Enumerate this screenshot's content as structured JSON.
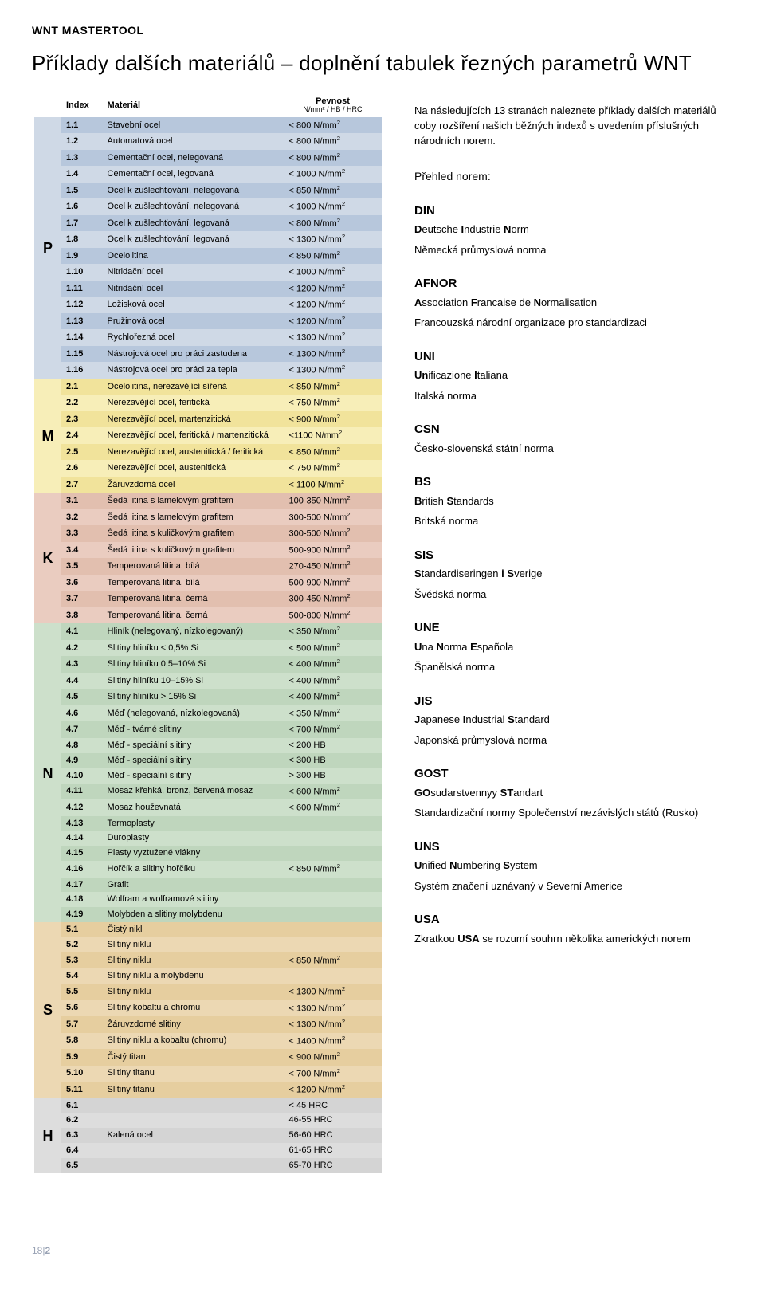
{
  "brand": {
    "heavy": "WNT",
    "light": "MASTERTOOL"
  },
  "headline": "Příklady dalších materiálů – doplnění tabulek řezných parametrů WNT",
  "table": {
    "headers": {
      "index": "Index",
      "material": "Materiál",
      "pevnost": "Pevnost",
      "pevnost_sub": "N/mm² / HB / HRC"
    },
    "groups": [
      {
        "cat": "P",
        "cat_bg": "#cfd9e6",
        "stripe_a": "#b7c7dc",
        "stripe_b": "#cfd9e6",
        "rows": [
          {
            "idx": "1.1",
            "mat": "Stavební ocel",
            "pev": "< 800 N/mm²"
          },
          {
            "idx": "1.2",
            "mat": "Automatová ocel",
            "pev": "< 800 N/mm²"
          },
          {
            "idx": "1.3",
            "mat": "Cementační ocel, nelegovaná",
            "pev": "< 800 N/mm²"
          },
          {
            "idx": "1.4",
            "mat": "Cementační ocel, legovaná",
            "pev": "< 1000 N/mm²"
          },
          {
            "idx": "1.5",
            "mat": "Ocel k zušlechťování, nelegovaná",
            "pev": "< 850 N/mm²"
          },
          {
            "idx": "1.6",
            "mat": "Ocel k zušlechťování, nelegovaná",
            "pev": "< 1000 N/mm²"
          },
          {
            "idx": "1.7",
            "mat": "Ocel k zušlechťování, legovaná",
            "pev": "< 800 N/mm²"
          },
          {
            "idx": "1.8",
            "mat": "Ocel k zušlechťování, legovaná",
            "pev": "< 1300 N/mm²"
          },
          {
            "idx": "1.9",
            "mat": "Ocelolitina",
            "pev": "< 850 N/mm²"
          },
          {
            "idx": "1.10",
            "mat": "Nitridační ocel",
            "pev": "< 1000 N/mm²"
          },
          {
            "idx": "1.11",
            "mat": "Nitridační ocel",
            "pev": "< 1200 N/mm²"
          },
          {
            "idx": "1.12",
            "mat": "Ložisková ocel",
            "pev": "< 1200 N/mm²"
          },
          {
            "idx": "1.13",
            "mat": "Pružinová ocel",
            "pev": "< 1200 N/mm²"
          },
          {
            "idx": "1.14",
            "mat": "Rychlořezná ocel",
            "pev": "< 1300 N/mm²"
          },
          {
            "idx": "1.15",
            "mat": "Nástrojová ocel pro práci zastudena",
            "pev": "< 1300 N/mm²"
          },
          {
            "idx": "1.16",
            "mat": "Nástrojová ocel pro práci za tepla",
            "pev": "< 1300 N/mm²"
          }
        ]
      },
      {
        "cat": "M",
        "cat_bg": "#f7eeb8",
        "stripe_a": "#f1e39b",
        "stripe_b": "#f7eeb8",
        "rows": [
          {
            "idx": "2.1",
            "mat": "Ocelolitina, nerezavějící sířená",
            "pev": "< 850 N/mm²"
          },
          {
            "idx": "2.2",
            "mat": "Nerezavějící ocel, feritická",
            "pev": "< 750 N/mm²"
          },
          {
            "idx": "2.3",
            "mat": "Nerezavějící ocel, martenzitická",
            "pev": "< 900 N/mm²"
          },
          {
            "idx": "2.4",
            "mat": "Nerezavějící ocel, feritická / martenzitická",
            "pev": "<1100 N/mm²"
          },
          {
            "idx": "2.5",
            "mat": "Nerezavějící ocel, austenitická / feritická",
            "pev": "< 850 N/mm²"
          },
          {
            "idx": "2.6",
            "mat": "Nerezavějící ocel, austenitická",
            "pev": "< 750 N/mm²"
          },
          {
            "idx": "2.7",
            "mat": "Žáruvzdorná ocel",
            "pev": "< 1100 N/mm²"
          }
        ]
      },
      {
        "cat": "K",
        "cat_bg": "#eaccc0",
        "stripe_a": "#e2bfaf",
        "stripe_b": "#eaccc0",
        "rows": [
          {
            "idx": "3.1",
            "mat": "Šedá litina s lamelovým grafitem",
            "pev": "100-350 N/mm²"
          },
          {
            "idx": "3.2",
            "mat": "Šedá litina s lamelovým grafitem",
            "pev": "300-500 N/mm²"
          },
          {
            "idx": "3.3",
            "mat": "Šedá litina s kuličkovým grafitem",
            "pev": "300-500 N/mm²"
          },
          {
            "idx": "3.4",
            "mat": "Šedá litina s kuličkovým grafitem",
            "pev": "500-900 N/mm²"
          },
          {
            "idx": "3.5",
            "mat": "Temperovaná litina, bílá",
            "pev": "270-450 N/mm²"
          },
          {
            "idx": "3.6",
            "mat": "Temperovaná litina, bílá",
            "pev": "500-900 N/mm²"
          },
          {
            "idx": "3.7",
            "mat": "Temperovaná litina, černá",
            "pev": "300-450 N/mm²"
          },
          {
            "idx": "3.8",
            "mat": "Temperovaná litina, černá",
            "pev": "500-800 N/mm²"
          }
        ]
      },
      {
        "cat": "N",
        "cat_bg": "#cde0cb",
        "stripe_a": "#bfd6bd",
        "stripe_b": "#cde0cb",
        "rows": [
          {
            "idx": "4.1",
            "mat": "Hliník (nelegovaný, nízkolegovaný)",
            "pev": "< 350 N/mm²"
          },
          {
            "idx": "4.2",
            "mat": "Slitiny hliníku < 0,5% Si",
            "pev": "< 500 N/mm²"
          },
          {
            "idx": "4.3",
            "mat": "Slitiny hliníku 0,5–10% Si",
            "pev": "< 400 N/mm²"
          },
          {
            "idx": "4.4",
            "mat": "Slitiny hliníku 10–15% Si",
            "pev": "< 400 N/mm²"
          },
          {
            "idx": "4.5",
            "mat": "Slitiny hliníku > 15% Si",
            "pev": "< 400 N/mm²"
          },
          {
            "idx": "4.6",
            "mat": "Měď (nelegovaná, nízkolegovaná)",
            "pev": "< 350 N/mm²"
          },
          {
            "idx": "4.7",
            "mat": "Měď - tvárné slitiny",
            "pev": "< 700 N/mm²"
          },
          {
            "idx": "4.8",
            "mat": "Měď - speciální slitiny",
            "pev": "< 200 HB"
          },
          {
            "idx": "4.9",
            "mat": "Měď - speciální slitiny",
            "pev": "< 300 HB"
          },
          {
            "idx": "4.10",
            "mat": "Měď - speciální slitiny",
            "pev": "> 300 HB"
          },
          {
            "idx": "4.11",
            "mat": "Mosaz křehká, bronz, červená mosaz",
            "pev": "< 600 N/mm²"
          },
          {
            "idx": "4.12",
            "mat": "Mosaz houževnatá",
            "pev": "< 600 N/mm²"
          },
          {
            "idx": "4.13",
            "mat": "Termoplasty",
            "pev": ""
          },
          {
            "idx": "4.14",
            "mat": "Duroplasty",
            "pev": ""
          },
          {
            "idx": "4.15",
            "mat": "Plasty vyztužené vlákny",
            "pev": ""
          },
          {
            "idx": "4.16",
            "mat": "Hořčík a slitiny hořčíku",
            "pev": "< 850 N/mm²"
          },
          {
            "idx": "4.17",
            "mat": "Grafit",
            "pev": ""
          },
          {
            "idx": "4.18",
            "mat": "Wolfram a wolframové slitiny",
            "pev": ""
          },
          {
            "idx": "4.19",
            "mat": "Molybden a slitiny molybdenu",
            "pev": ""
          }
        ]
      },
      {
        "cat": "S",
        "cat_bg": "#ecd8b3",
        "stripe_a": "#e6ce9f",
        "stripe_b": "#ecd8b3",
        "rows": [
          {
            "idx": "5.1",
            "mat": "Čistý nikl",
            "pev": ""
          },
          {
            "idx": "5.2",
            "mat": "Slitiny niklu",
            "pev": ""
          },
          {
            "idx": "5.3",
            "mat": "Slitiny niklu",
            "pev": "< 850 N/mm²"
          },
          {
            "idx": "5.4",
            "mat": "Slitiny niklu a molybdenu",
            "pev": ""
          },
          {
            "idx": "5.5",
            "mat": "Slitiny niklu",
            "pev": "< 1300 N/mm²"
          },
          {
            "idx": "5.6",
            "mat": "Slitiny kobaltu a chromu",
            "pev": "< 1300 N/mm²"
          },
          {
            "idx": "5.7",
            "mat": "Žáruvzdorné slitiny",
            "pev": "< 1300 N/mm²"
          },
          {
            "idx": "5.8",
            "mat": "Slitiny niklu a kobaltu (chromu)",
            "pev": "< 1400 N/mm²"
          },
          {
            "idx": "5.9",
            "mat": "Čistý titan",
            "pev": "< 900 N/mm²"
          },
          {
            "idx": "5.10",
            "mat": "Slitiny titanu",
            "pev": "< 700 N/mm²"
          },
          {
            "idx": "5.11",
            "mat": "Slitiny titanu",
            "pev": "< 1200 N/mm²"
          }
        ]
      },
      {
        "cat": "H",
        "cat_bg": "#dddddd",
        "stripe_a": "#d4d4d4",
        "stripe_b": "#dddddd",
        "mat_label": "Kalená ocel",
        "rows": [
          {
            "idx": "6.1",
            "mat": "",
            "pev": "< 45 HRC"
          },
          {
            "idx": "6.2",
            "mat": "",
            "pev": "46-55 HRC"
          },
          {
            "idx": "6.3",
            "mat": "Kalená ocel",
            "pev": "56-60 HRC"
          },
          {
            "idx": "6.4",
            "mat": "",
            "pev": "61-65 HRC"
          },
          {
            "idx": "6.5",
            "mat": "",
            "pev": "65-70 HRC"
          }
        ]
      }
    ]
  },
  "right": {
    "intro": "Na následujících 13 stranách naleznete příklady dalších materiálů coby rozšíření našich běžných indexů s uvedením příslušných národních norem.",
    "overview_title": "Přehled norem:",
    "sections": [
      {
        "code": "DIN",
        "full_html": "<b>D</b>eutsche <b>I</b>ndustrie <b>N</b>orm",
        "desc": "Německá průmyslová norma"
      },
      {
        "code": "AFNOR",
        "full_html": "<b>A</b>ssociation <b>F</b>rancaise de <b>N</b>ormalisation",
        "desc": "Francouzská národní organizace pro standardizaci"
      },
      {
        "code": "UNI",
        "full_html": "<b>Un</b>ificazione <b>I</b>taliana",
        "desc": "Italská norma"
      },
      {
        "code": "CSN",
        "full_html": "",
        "desc": "Česko-slovenská státní norma"
      },
      {
        "code": "BS",
        "full_html": "<b>B</b>ritish <b>S</b>tandards",
        "desc": "Britská norma"
      },
      {
        "code": "SIS",
        "full_html": "<b>S</b>tandardiseringen <b>i</b> <b>S</b>verige",
        "desc": "Švédská norma"
      },
      {
        "code": "UNE",
        "full_html": "<b>U</b>na <b>N</b>orma <b>E</b>spañola",
        "desc": "Španělská norma"
      },
      {
        "code": "JIS",
        "full_html": "<b>J</b>apanese <b>I</b>ndustrial <b>S</b>tandard",
        "desc": "Japonská průmyslová norma"
      },
      {
        "code": "GOST",
        "full_html": "<b>GO</b>sudarstvennyy <b>ST</b>andart",
        "desc": "Standardizační normy Společenství nezávislých států (Rusko)"
      },
      {
        "code": "UNS",
        "full_html": "<b>U</b>nified <b>N</b>umbering <b>S</b>ystem",
        "desc": "Systém značení uznávaný v Severní Americe"
      },
      {
        "code": "USA",
        "full_html": "",
        "desc": "Zkratkou <b>USA</b> se rozumí souhrn několika amerických norem"
      }
    ]
  },
  "footer": {
    "page": "18",
    "sep": "|",
    "chapter": "2"
  }
}
